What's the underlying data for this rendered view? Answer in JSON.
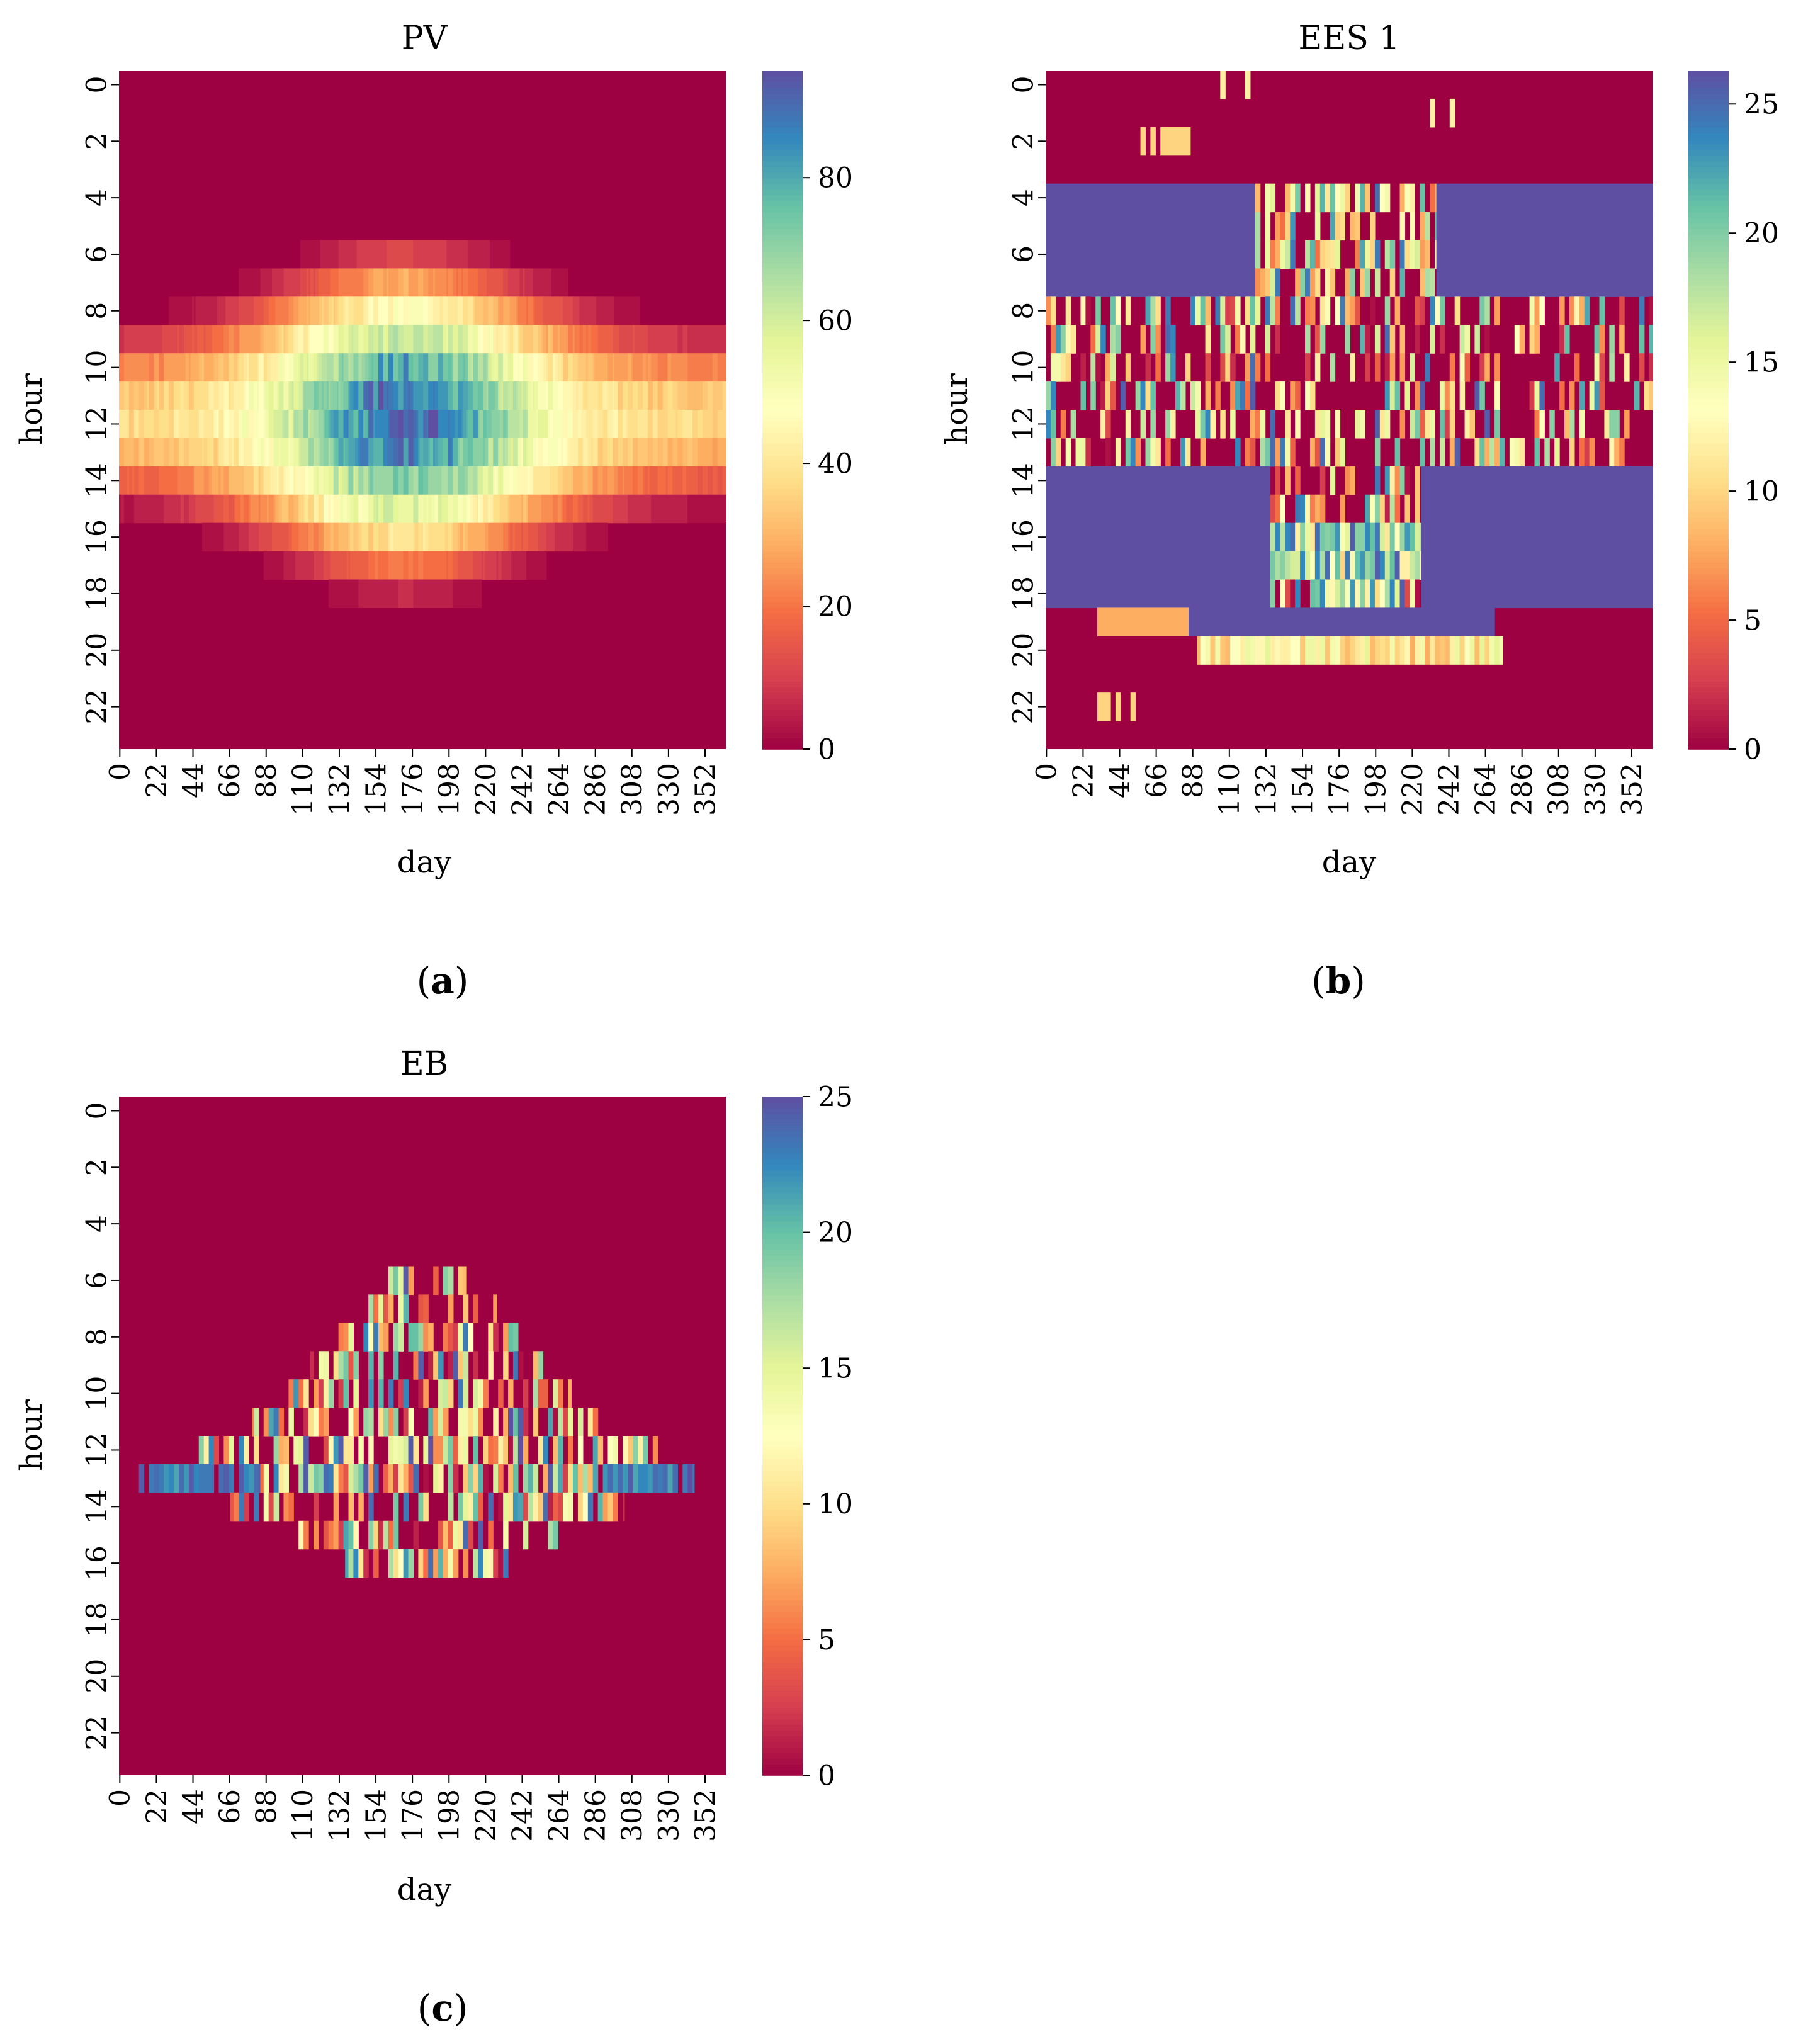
{
  "colors": {
    "colormap": "Spectral",
    "stops": [
      "#9e0142",
      "#d53e4f",
      "#f46d43",
      "#fdae61",
      "#fee08b",
      "#ffffbf",
      "#e6f598",
      "#abdda4",
      "#66c2a5",
      "#3288bd",
      "#5e4fa2"
    ]
  },
  "chart_data": [
    {
      "id": "a",
      "type": "heatmap",
      "title": "PV",
      "caption_letter": "a",
      "xlabel": "day",
      "ylabel": "hour",
      "x_ticks": [
        "0",
        "22",
        "44",
        "66",
        "88",
        "110",
        "132",
        "154",
        "176",
        "198",
        "220",
        "242",
        "264",
        "286",
        "308",
        "330",
        "352"
      ],
      "y_ticks": [
        "0",
        "2",
        "4",
        "6",
        "8",
        "10",
        "12",
        "14",
        "16",
        "18",
        "20",
        "22"
      ],
      "n_days": 365,
      "n_hours": 24,
      "colorbar": {
        "min": 0,
        "max": 95,
        "ticks": [
          0,
          20,
          40,
          60,
          80
        ]
      },
      "pattern": "pv"
    },
    {
      "id": "b",
      "type": "heatmap",
      "title": "EES 1",
      "caption_letter": "b",
      "xlabel": "day",
      "ylabel": "hour",
      "x_ticks": [
        "0",
        "22",
        "44",
        "66",
        "88",
        "110",
        "132",
        "154",
        "176",
        "198",
        "220",
        "242",
        "264",
        "286",
        "308",
        "330",
        "352"
      ],
      "y_ticks": [
        "0",
        "2",
        "4",
        "6",
        "8",
        "10",
        "12",
        "14",
        "16",
        "18",
        "20",
        "22"
      ],
      "n_days": 365,
      "n_hours": 24,
      "colorbar": {
        "min": 0,
        "max": 26.3,
        "ticks": [
          0,
          5,
          10,
          15,
          20,
          25
        ]
      },
      "pattern": "ees"
    },
    {
      "id": "c",
      "type": "heatmap",
      "title": "EB",
      "caption_letter": "c",
      "xlabel": "day",
      "ylabel": "hour",
      "x_ticks": [
        "0",
        "22",
        "44",
        "66",
        "88",
        "110",
        "132",
        "154",
        "176",
        "198",
        "220",
        "242",
        "264",
        "286",
        "308",
        "330",
        "352"
      ],
      "y_ticks": [
        "0",
        "2",
        "4",
        "6",
        "8",
        "10",
        "12",
        "14",
        "16",
        "18",
        "20",
        "22"
      ],
      "n_days": 365,
      "n_hours": 24,
      "colorbar": {
        "min": 0,
        "max": 25,
        "ticks": [
          0,
          5,
          10,
          15,
          20,
          25
        ]
      },
      "pattern": "eb"
    }
  ]
}
